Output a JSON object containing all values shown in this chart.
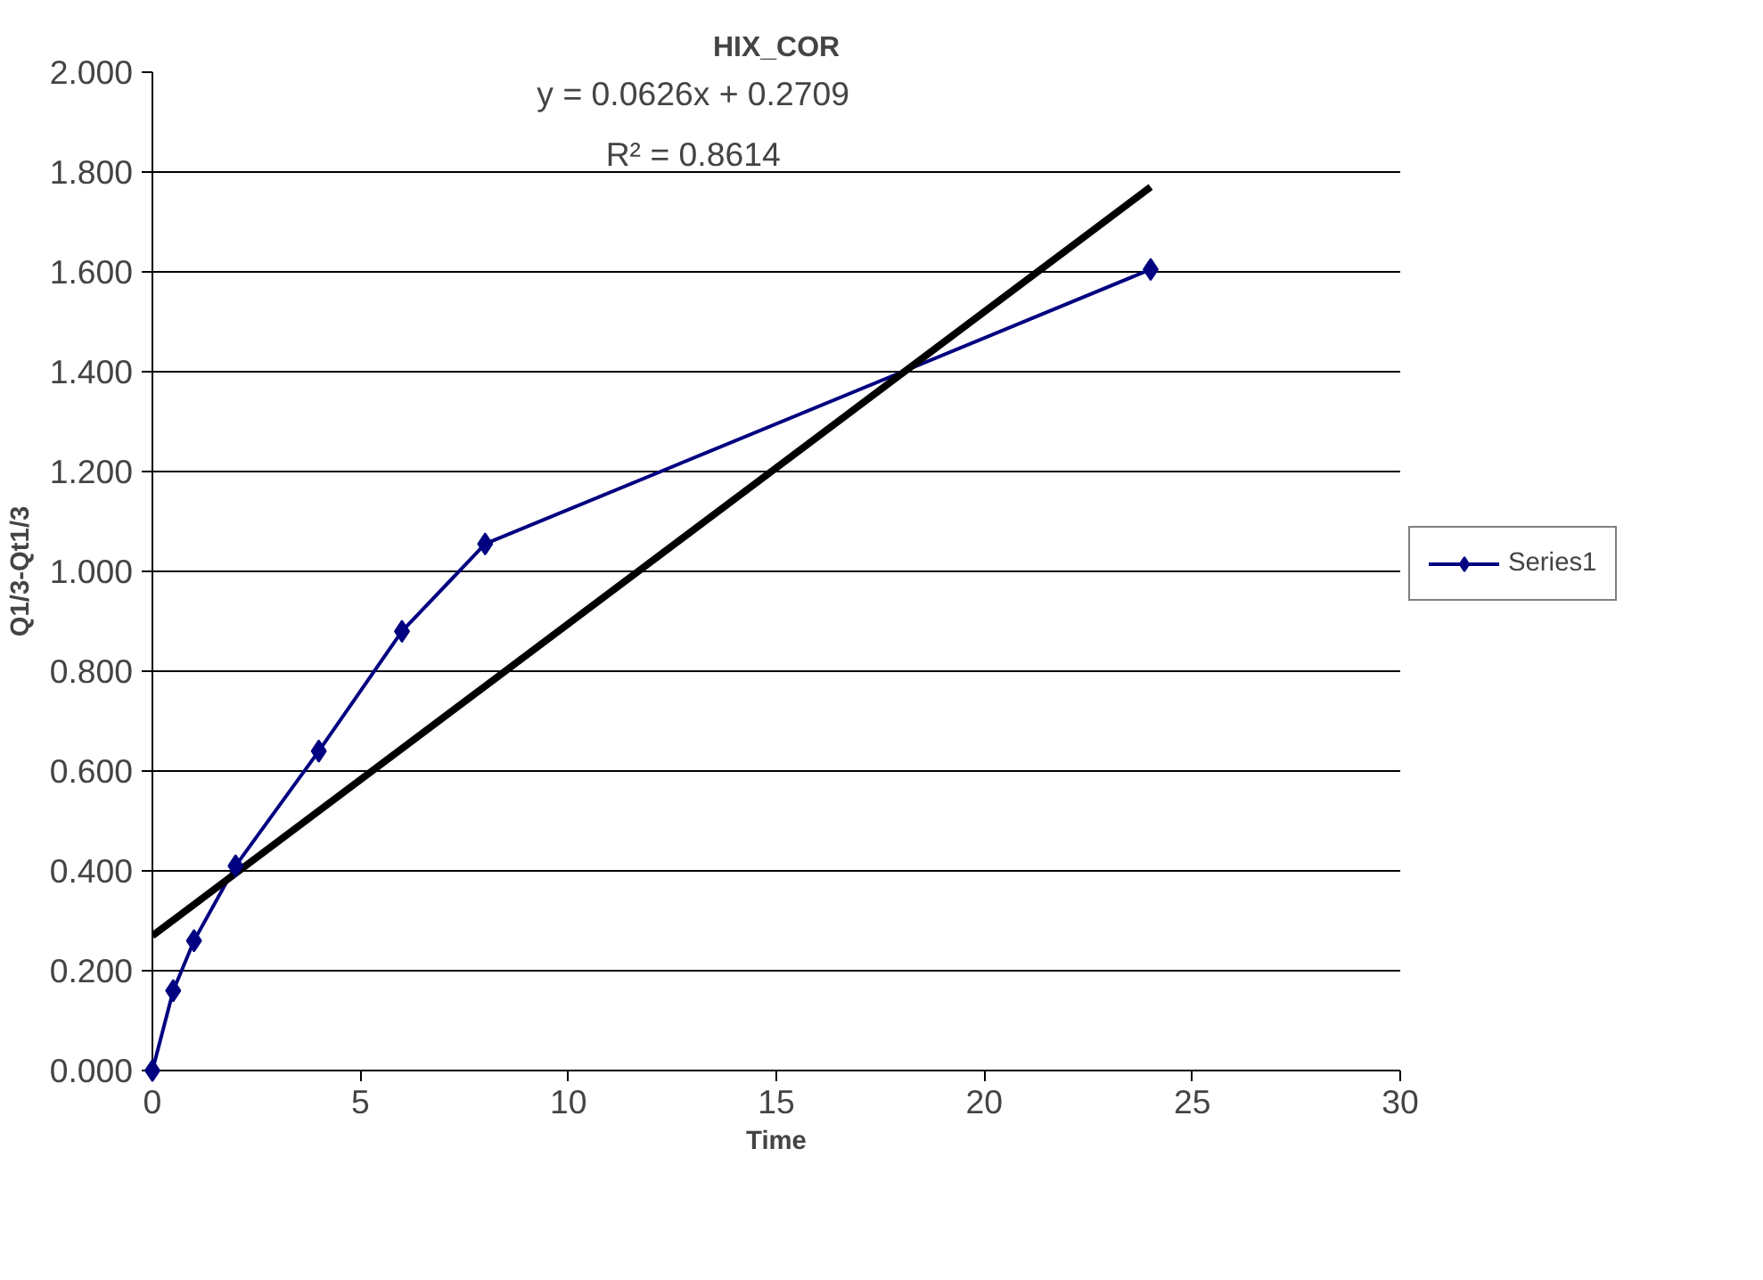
{
  "chart_data": {
    "type": "line",
    "title": "HIX_COR",
    "xlabel": "Time",
    "ylabel": "Q1/3-Qt1/3",
    "x": [
      0,
      0.5,
      1,
      2,
      4,
      6,
      8,
      24
    ],
    "series": [
      {
        "name": "Series1",
        "color": "#000080",
        "values": [
          0,
          0.16,
          0.26,
          0.41,
          0.64,
          0.88,
          1.055,
          1.605
        ],
        "marker": "diamond"
      },
      {
        "type": "line",
        "color": "#000000",
        "x": [
          0,
          24
        ],
        "values": [
          0.27,
          1.77
        ],
        "marker": "none"
      }
    ],
    "annotations": [
      "y = 0.0626x + 0.2709",
      "R² = 0.8614"
    ],
    "xlim": [
      0,
      30
    ],
    "xticks": [
      0,
      5,
      10,
      15,
      20,
      25,
      30
    ],
    "ylim": [
      0,
      2
    ],
    "yticks": [
      {
        "value": 0,
        "label": "0.000"
      },
      {
        "value": 0.2,
        "label": "0.200"
      },
      {
        "value": 0.4,
        "label": "0.400"
      },
      {
        "value": 0.6,
        "label": "0.600"
      },
      {
        "value": 0.8,
        "label": "0.800"
      },
      {
        "value": 1.0,
        "label": "1.000"
      },
      {
        "value": 1.2,
        "label": "1.200"
      },
      {
        "value": 1.4,
        "label": "1.400"
      },
      {
        "value": 1.6,
        "label": "1.600"
      },
      {
        "value": 1.8,
        "label": "1.800"
      },
      {
        "value": 2.0,
        "label": "2.000"
      }
    ],
    "grid": "y",
    "legend": "right",
    "line_style": "solid"
  }
}
